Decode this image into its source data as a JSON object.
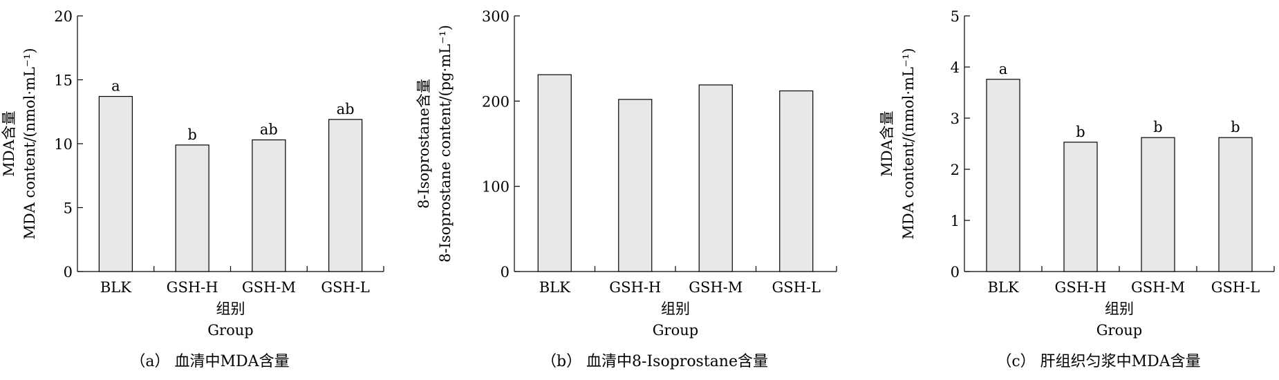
{
  "chart_data": [
    {
      "type": "bar",
      "categories": [
        "BLK",
        "GSH-H",
        "GSH-M",
        "GSH-L"
      ],
      "values": [
        13.7,
        9.9,
        10.3,
        11.9
      ],
      "labels": [
        "a",
        "b",
        "ab",
        "ab"
      ],
      "xlabel": [
        "组别",
        "Group"
      ],
      "ylabel": [
        "MDA含量",
        "MDA content/(nmol·mL⁻¹)"
      ],
      "ylim": [
        0,
        20
      ],
      "yticks": [
        0,
        5,
        10,
        15,
        20
      ],
      "caption": "（a） 血清中MDA含量",
      "bar_color": "#e8e8e8",
      "grid": false
    },
    {
      "type": "bar",
      "categories": [
        "BLK",
        "GSH-H",
        "GSH-M",
        "GSH-L"
      ],
      "values": [
        231,
        202,
        219,
        212
      ],
      "labels": [
        "",
        "",
        "",
        ""
      ],
      "xlabel": [
        "组别",
        "Group"
      ],
      "ylabel": [
        "8-Isoprostane含量",
        "8-Isoprostane content/(pg·mL⁻¹)"
      ],
      "ylim": [
        0,
        300
      ],
      "yticks": [
        0,
        100,
        200,
        300
      ],
      "caption": "（b） 血清中8-Isoprostane含量",
      "bar_color": "#e8e8e8",
      "grid": false
    },
    {
      "type": "bar",
      "categories": [
        "BLK",
        "GSH-H",
        "GSH-M",
        "GSH-L"
      ],
      "values": [
        3.76,
        2.53,
        2.62,
        2.62
      ],
      "labels": [
        "a",
        "b",
        "b",
        "b"
      ],
      "xlabel": [
        "组别",
        "Group"
      ],
      "ylabel": [
        "MDA含量",
        "MDA content/(nmol·mL⁻¹)"
      ],
      "ylim": [
        0,
        5
      ],
      "yticks": [
        0,
        1,
        2,
        3,
        4,
        5
      ],
      "caption": "（c） 肝组织匀浆中MDA含量",
      "bar_color": "#e8e8e8",
      "grid": false
    }
  ]
}
